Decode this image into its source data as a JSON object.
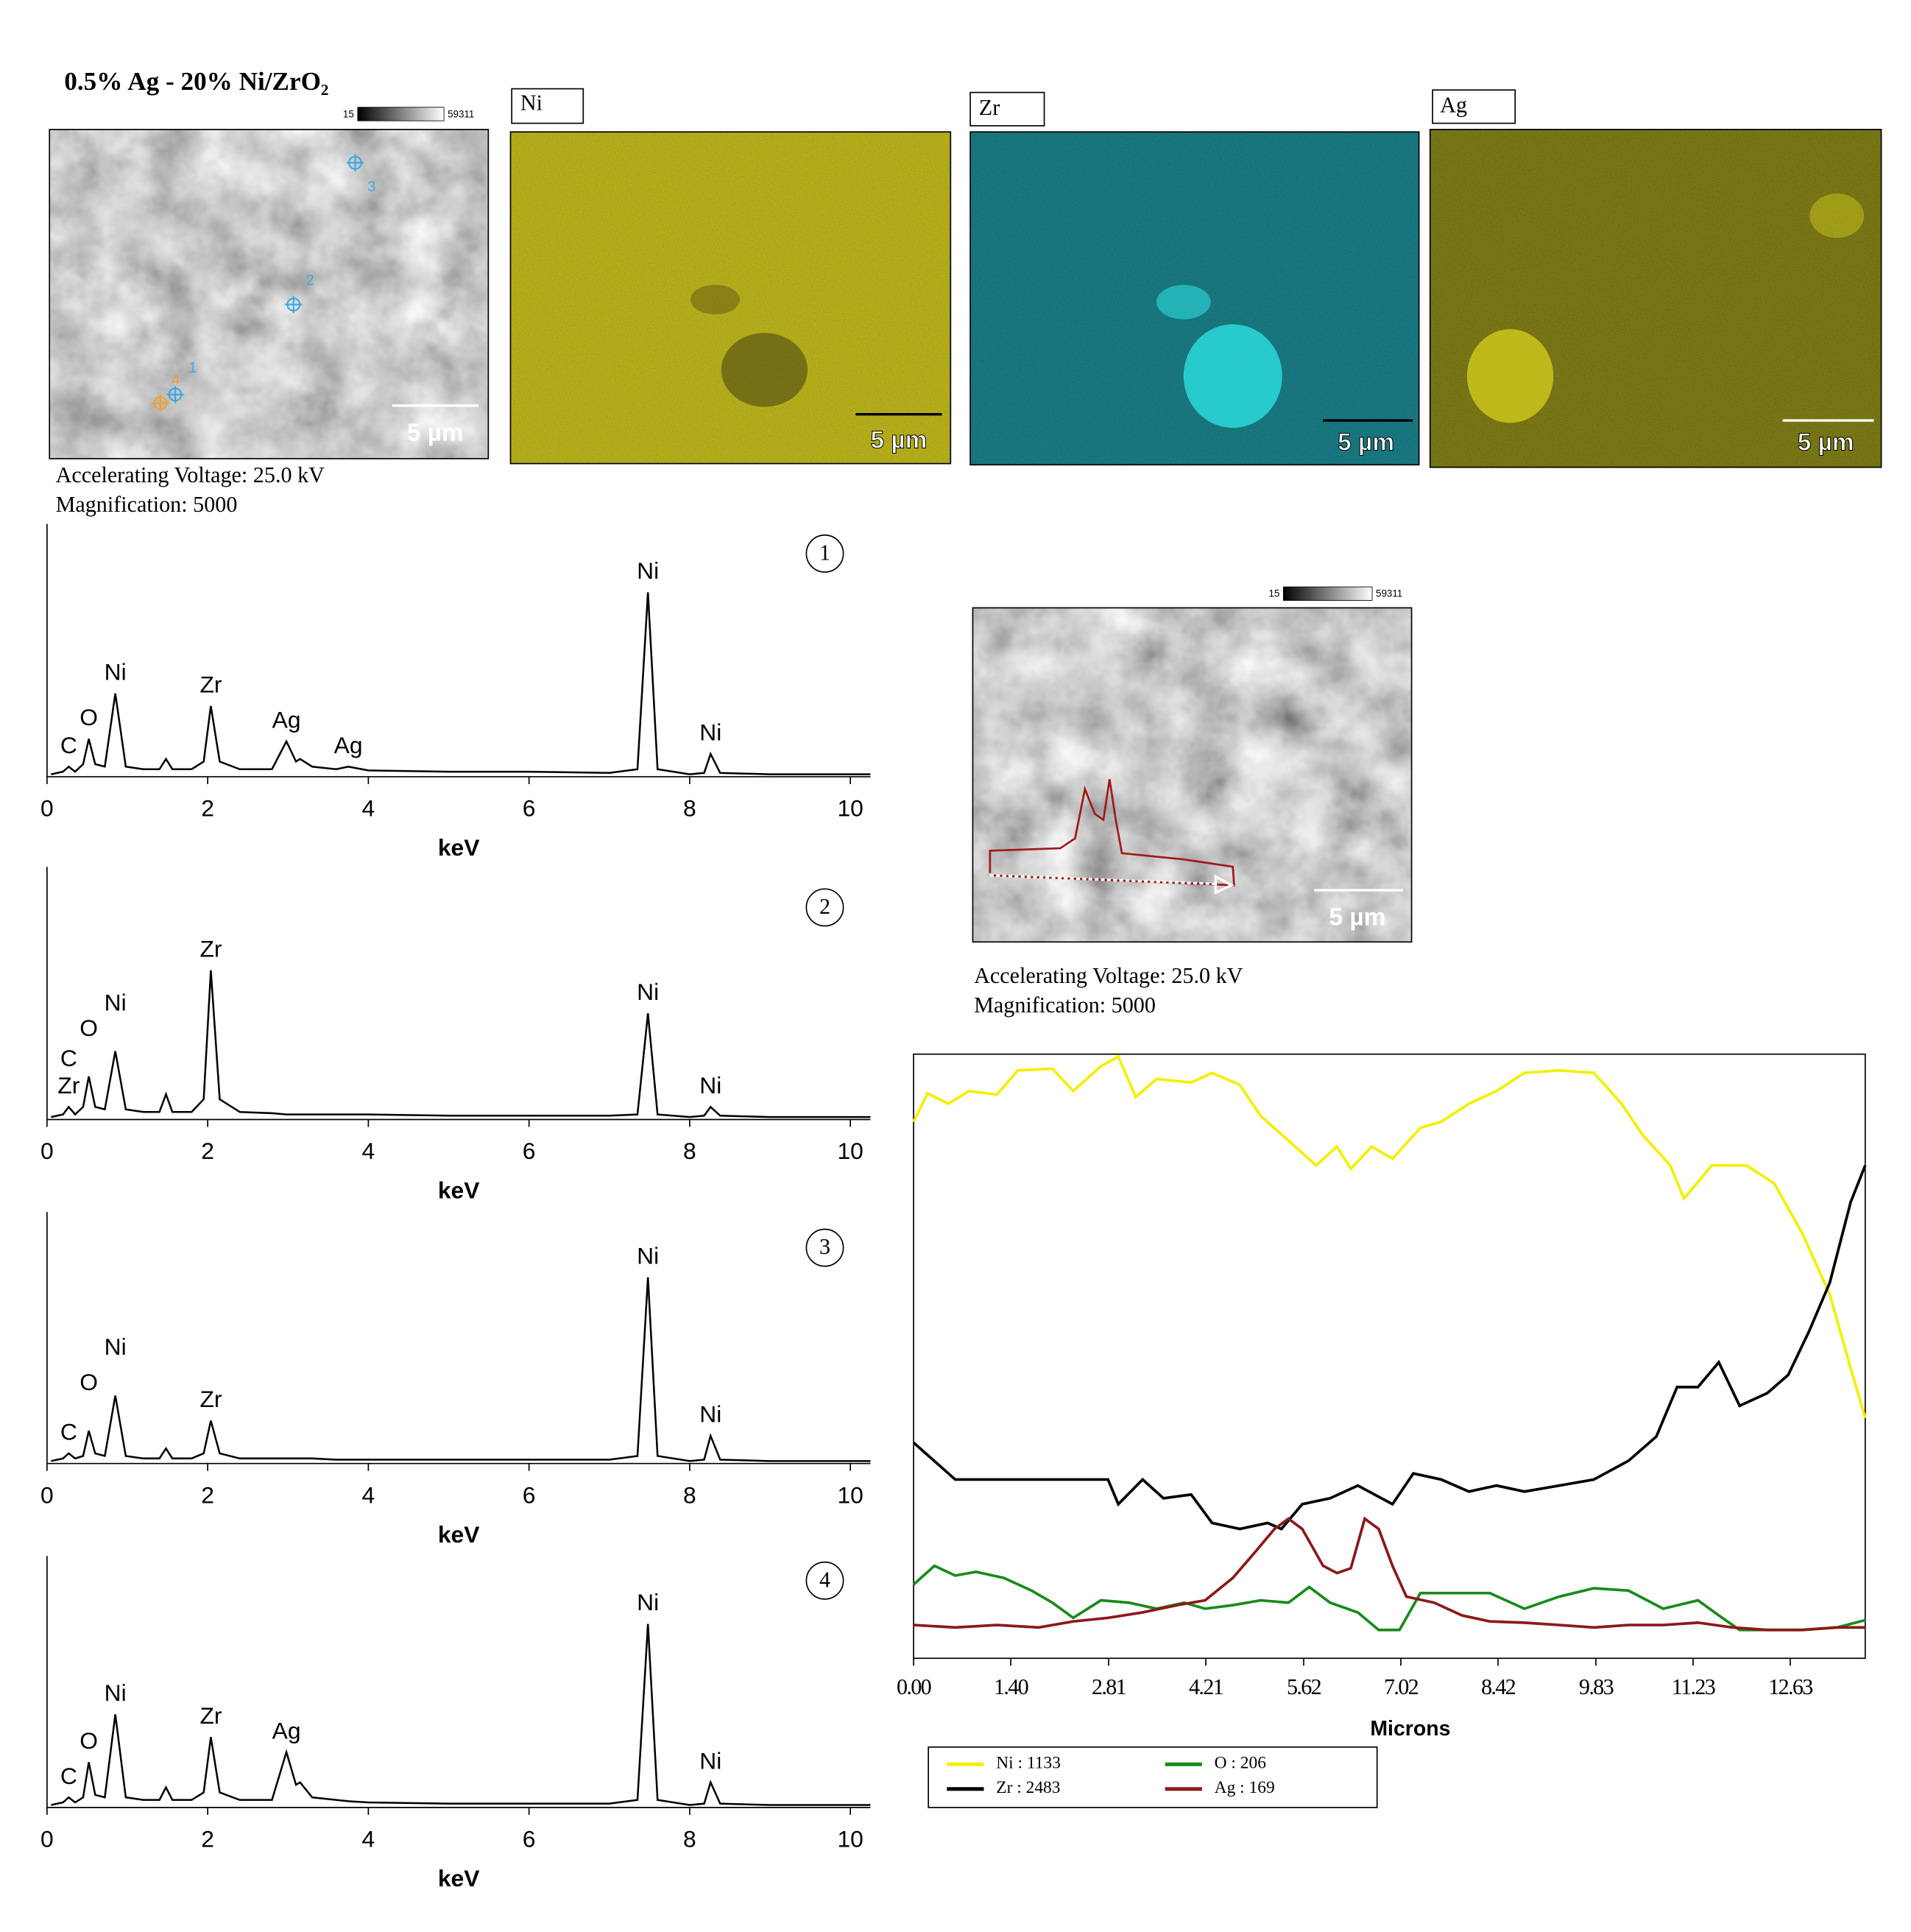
{
  "header": {
    "title": "0.5% Ag - 20% Ni/ZrO₂"
  },
  "images": {
    "scale_min": 15,
    "scale_max": 59311,
    "scale_bar": "5 µm",
    "map_labels": [
      "Ni",
      "Zr",
      "Ag"
    ],
    "points": [
      "1",
      "2",
      "3",
      "4"
    ]
  },
  "info": {
    "voltage": "Accelerating Voltage: 25.0 kV",
    "magnification": "Magnification: 5000"
  },
  "chart_data": [
    {
      "type": "line",
      "title": "1",
      "xlabel": "keV",
      "color": "#000000",
      "xlim": [
        0,
        10.25
      ],
      "xticks": [
        0,
        2,
        4,
        6,
        8,
        10
      ],
      "ylim": [
        0,
        100
      ],
      "x": [
        0.05,
        0.2,
        0.27,
        0.35,
        0.45,
        0.52,
        0.6,
        0.72,
        0.85,
        0.98,
        1.2,
        1.4,
        1.48,
        1.56,
        1.8,
        1.95,
        2.04,
        2.15,
        2.4,
        2.8,
        2.98,
        3.1,
        3.15,
        3.3,
        3.6,
        3.75,
        4,
        5,
        6,
        7,
        7.35,
        7.48,
        7.6,
        8,
        8.18,
        8.26,
        8.38,
        9,
        10.25
      ],
      "values": [
        1,
        2,
        4,
        2,
        5,
        15,
        5,
        4,
        33,
        4,
        3,
        3,
        7,
        3,
        3,
        6,
        28,
        6,
        3,
        3,
        14,
        6,
        7,
        4,
        3,
        4,
        2.5,
        2,
        2,
        1.5,
        3,
        73,
        3,
        1,
        1.5,
        9,
        1.5,
        1,
        1
      ],
      "annotations": [
        {
          "text": "C",
          "x": 0.27
        },
        {
          "text": "O",
          "x": 0.52
        },
        {
          "text": "Ni",
          "x": 0.85
        },
        {
          "text": "Zr",
          "x": 2.04
        },
        {
          "text": "Ag",
          "x": 2.98
        },
        {
          "text": "Ag",
          "x": 3.75
        },
        {
          "text": "Ni",
          "x": 7.48
        },
        {
          "text": "Ni",
          "x": 8.26
        }
      ]
    },
    {
      "type": "line",
      "title": "2",
      "xlabel": "keV",
      "color": "#000000",
      "xlim": [
        0,
        10.25
      ],
      "xticks": [
        0,
        2,
        4,
        6,
        8,
        10
      ],
      "ylim": [
        0,
        100
      ],
      "x": [
        0.05,
        0.2,
        0.27,
        0.35,
        0.45,
        0.52,
        0.6,
        0.72,
        0.85,
        0.98,
        1.2,
        1.4,
        1.48,
        1.56,
        1.8,
        1.95,
        2.04,
        2.15,
        2.4,
        2.8,
        2.98,
        3.1,
        3.15,
        3.3,
        3.6,
        3.75,
        4,
        5,
        6,
        7,
        7.35,
        7.48,
        7.6,
        8,
        8.18,
        8.26,
        8.38,
        9,
        10.25
      ],
      "values": [
        1,
        2,
        5,
        2,
        5,
        17,
        5,
        4,
        27,
        4,
        3,
        3,
        10,
        3,
        3,
        8,
        59,
        8,
        3,
        2.5,
        2,
        2,
        2,
        2,
        2,
        2,
        2,
        1.5,
        1.5,
        1.5,
        2,
        42,
        2,
        1,
        1.5,
        5,
        1.5,
        1,
        1
      ],
      "annotations": [
        {
          "text": "Zr",
          "x": 0.27
        },
        {
          "text": "C",
          "x": 0.27
        },
        {
          "text": "O",
          "x": 0.52
        },
        {
          "text": "Ni",
          "x": 0.85
        },
        {
          "text": "Zr",
          "x": 2.04
        },
        {
          "text": "Ni",
          "x": 7.48
        },
        {
          "text": "Ni",
          "x": 8.26
        }
      ]
    },
    {
      "type": "line",
      "title": "3",
      "xlabel": "keV",
      "color": "#000000",
      "xlim": [
        0,
        10.25
      ],
      "xticks": [
        0,
        2,
        4,
        6,
        8,
        10
      ],
      "ylim": [
        0,
        100
      ],
      "x": [
        0.05,
        0.2,
        0.27,
        0.35,
        0.45,
        0.52,
        0.6,
        0.72,
        0.85,
        0.98,
        1.2,
        1.4,
        1.48,
        1.56,
        1.8,
        1.95,
        2.04,
        2.15,
        2.4,
        2.8,
        2.98,
        3.1,
        3.15,
        3.3,
        3.6,
        3.75,
        4,
        5,
        6,
        7,
        7.35,
        7.48,
        7.6,
        8,
        8.18,
        8.26,
        8.38,
        9,
        10.25
      ],
      "values": [
        1,
        2,
        4,
        2,
        3,
        13,
        4,
        3,
        27,
        3,
        2,
        2,
        6,
        2,
        2,
        4,
        17,
        4,
        2,
        2,
        2,
        2,
        2,
        2,
        1.5,
        1.5,
        1.5,
        1.5,
        1.5,
        1.5,
        3,
        74,
        3,
        1,
        1.5,
        11,
        1.5,
        1,
        1
      ],
      "annotations": [
        {
          "text": "C",
          "x": 0.27
        },
        {
          "text": "O",
          "x": 0.52
        },
        {
          "text": "Ni",
          "x": 0.85
        },
        {
          "text": "Zr",
          "x": 2.04
        },
        {
          "text": "Ni",
          "x": 7.48
        },
        {
          "text": "Ni",
          "x": 8.26
        }
      ]
    },
    {
      "type": "line",
      "title": "4",
      "xlabel": "keV",
      "color": "#000000",
      "xlim": [
        0,
        10.25
      ],
      "xticks": [
        0,
        2,
        4,
        6,
        8,
        10
      ],
      "ylim": [
        0,
        100
      ],
      "x": [
        0.05,
        0.2,
        0.27,
        0.35,
        0.45,
        0.52,
        0.6,
        0.72,
        0.85,
        0.98,
        1.2,
        1.4,
        1.48,
        1.56,
        1.8,
        1.95,
        2.04,
        2.15,
        2.4,
        2.8,
        2.98,
        3.1,
        3.15,
        3.3,
        3.6,
        3.75,
        4,
        5,
        6,
        7,
        7.35,
        7.48,
        7.6,
        8,
        8.18,
        8.26,
        8.38,
        9,
        10.25
      ],
      "values": [
        1,
        2,
        4,
        2,
        4,
        18,
        5,
        4,
        37,
        4,
        3,
        3,
        8,
        3,
        3,
        6,
        28,
        6,
        3,
        3,
        22,
        9,
        10,
        4,
        3,
        2.5,
        2,
        1.5,
        1.5,
        1.5,
        3,
        73,
        3,
        1,
        1.5,
        10,
        1.5,
        1,
        1
      ],
      "annotations": [
        {
          "text": "C",
          "x": 0.27
        },
        {
          "text": "O",
          "x": 0.52
        },
        {
          "text": "Ni",
          "x": 0.85
        },
        {
          "text": "Zr",
          "x": 2.04
        },
        {
          "text": "Ag",
          "x": 2.98
        },
        {
          "text": "Ni",
          "x": 7.48
        },
        {
          "text": "Ni",
          "x": 8.26
        }
      ]
    },
    {
      "type": "multiline",
      "xlabel": "Microns",
      "xlim": [
        0,
        13.71
      ],
      "ylim": [
        0,
        100
      ],
      "legend": "bottom-left",
      "xticks": [
        {
          "value": 0,
          "label": "0.00"
        },
        {
          "value": 1.4,
          "label": "1.40"
        },
        {
          "value": 2.81,
          "label": "2.81"
        },
        {
          "value": 4.21,
          "label": "4.21"
        },
        {
          "value": 5.62,
          "label": "5.62"
        },
        {
          "value": 7.02,
          "label": "7.02"
        },
        {
          "value": 8.42,
          "label": "8.42"
        },
        {
          "value": 9.83,
          "label": "9.83"
        },
        {
          "value": 11.23,
          "label": "11.23"
        },
        {
          "value": 12.63,
          "label": "12.63"
        }
      ],
      "series": [
        {
          "name": "Ni : 1133",
          "color": "#f2f000",
          "x": [
            0,
            0.2,
            0.5,
            0.8,
            1.2,
            1.5,
            2.0,
            2.3,
            2.7,
            2.95,
            3.2,
            3.5,
            4.0,
            4.3,
            4.7,
            5.0,
            5.4,
            5.8,
            6.1,
            6.3,
            6.6,
            6.9,
            7.3,
            7.6,
            8.0,
            8.4,
            8.8,
            9.3,
            9.8,
            10.2,
            10.5,
            10.9,
            11.1,
            11.5,
            12.0,
            12.4,
            12.8,
            13.2,
            13.5,
            13.71
          ],
          "values": [
            88.8,
            93.5,
            91.8,
            93.9,
            93.3,
            97.3,
            97.6,
            93.9,
            98,
            99.6,
            92.9,
            95.9,
            95.3,
            96.9,
            94.9,
            89.8,
            85.7,
            81.6,
            84.7,
            81,
            84.7,
            82.7,
            87.8,
            88.8,
            91.8,
            93.9,
            96.9,
            97.3,
            96.9,
            91.8,
            86.7,
            81.6,
            76.1,
            81.6,
            81.6,
            78.6,
            70.4,
            60.2,
            48,
            39.8
          ]
        },
        {
          "name": "Zr : 2483",
          "color": "#000000",
          "x": [
            0,
            0.6,
            1.2,
            2.0,
            2.8,
            2.95,
            3.3,
            3.6,
            4.0,
            4.3,
            4.7,
            5.1,
            5.3,
            5.6,
            6.0,
            6.4,
            6.9,
            7.2,
            7.6,
            8.0,
            8.4,
            8.8,
            9.3,
            9.8,
            10.3,
            10.7,
            11.0,
            11.3,
            11.6,
            11.9,
            12.3,
            12.6,
            12.9,
            13.2,
            13.5,
            13.71
          ],
          "values": [
            35.7,
            29.6,
            29.6,
            29.6,
            29.6,
            25.5,
            29.6,
            26.5,
            27.1,
            22.4,
            21.4,
            22.4,
            21.4,
            25.5,
            26.5,
            28.6,
            25.5,
            30.6,
            29.6,
            27.6,
            28.6,
            27.6,
            28.6,
            29.6,
            32.7,
            36.7,
            44.9,
            44.9,
            49,
            41.8,
            43.9,
            46.9,
            54.1,
            62.2,
            75.5,
            81.6
          ]
        },
        {
          "name": "O : 206",
          "color": "#1a8a1a",
          "x": [
            0,
            0.3,
            0.6,
            0.9,
            1.3,
            1.7,
            2.0,
            2.3,
            2.7,
            3.1,
            3.5,
            3.9,
            4.2,
            4.6,
            5.0,
            5.4,
            5.7,
            6.0,
            6.4,
            6.7,
            7.0,
            7.3,
            7.8,
            8.3,
            8.8,
            9.3,
            9.8,
            10.3,
            10.8,
            11.3,
            11.6,
            11.9,
            12.3,
            12.8,
            13.3,
            13.71
          ],
          "values": [
            12.2,
            15.3,
            13.7,
            14.3,
            13.3,
            11.2,
            9.2,
            6.7,
            9.6,
            9.2,
            8.2,
            9.2,
            8.2,
            8.8,
            9.6,
            9.2,
            11.8,
            9.2,
            7.6,
            4.7,
            4.7,
            10.8,
            10.8,
            10.8,
            8.2,
            10.2,
            11.6,
            11.2,
            8.2,
            9.6,
            7.1,
            4.7,
            4.7,
            4.7,
            5.1,
            6.3
          ]
        },
        {
          "name": "Ag : 169",
          "color": "#8b1a1a",
          "x": [
            0,
            0.6,
            1.2,
            1.8,
            2.3,
            2.8,
            3.3,
            3.8,
            4.2,
            4.6,
            4.9,
            5.2,
            5.4,
            5.6,
            5.9,
            6.1,
            6.3,
            6.5,
            6.7,
            6.9,
            7.1,
            7.5,
            7.9,
            8.3,
            8.8,
            9.3,
            9.8,
            10.3,
            10.8,
            11.3,
            11.8,
            12.3,
            12.8,
            13.3,
            13.71
          ],
          "values": [
            5.5,
            5.1,
            5.5,
            5.1,
            6.1,
            6.7,
            7.6,
            8.8,
            9.6,
            13.3,
            17.3,
            21.4,
            23.1,
            21.4,
            15.3,
            14.1,
            14.9,
            23.1,
            21.4,
            15.3,
            10.2,
            9.2,
            7.1,
            6.1,
            5.9,
            5.5,
            5.1,
            5.5,
            5.5,
            5.9,
            5.1,
            4.7,
            4.7,
            5.1,
            5.1
          ]
        }
      ]
    }
  ]
}
